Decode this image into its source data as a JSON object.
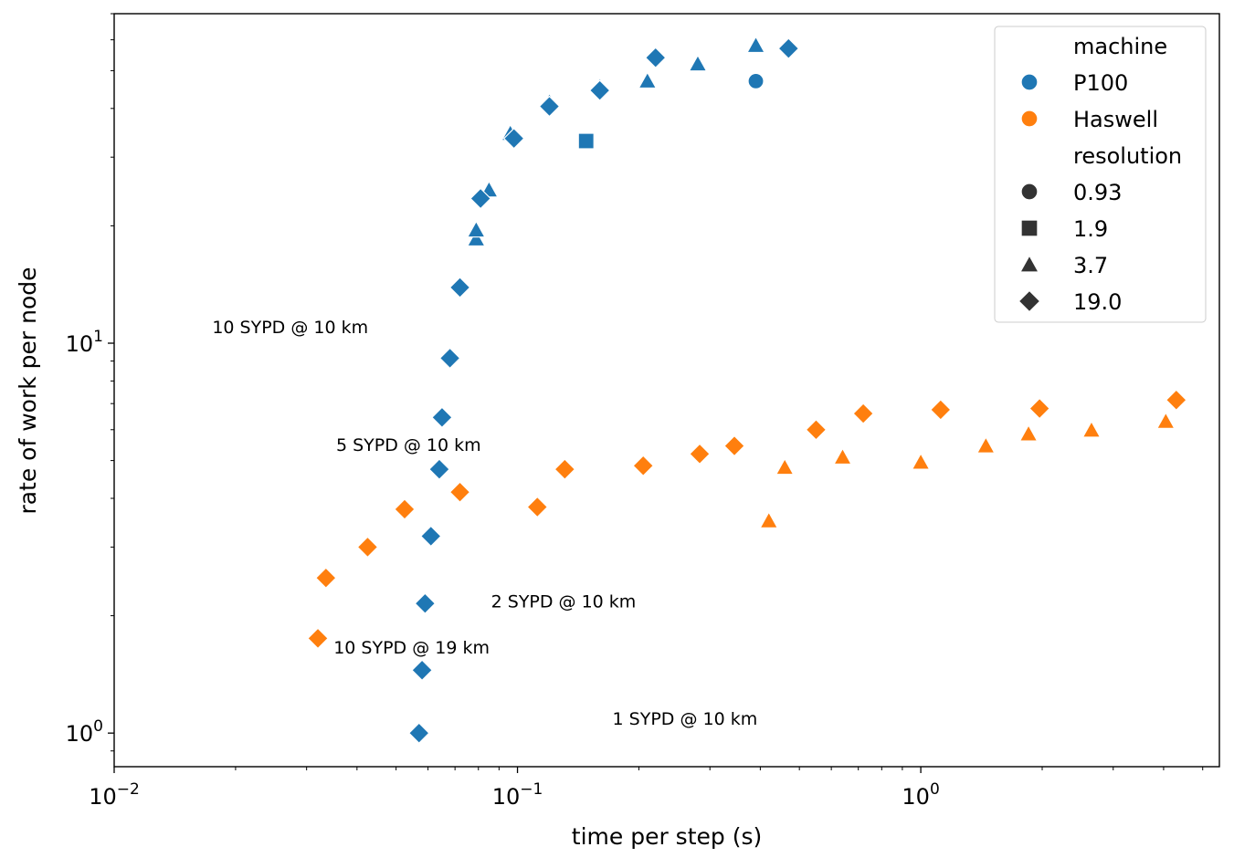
{
  "chart_data": {
    "type": "scatter",
    "title": "",
    "xlabel": "time per step (s)",
    "ylabel": "rate of work per node",
    "xscale": "log",
    "yscale": "log",
    "xlim": [
      0.01,
      5.5
    ],
    "ylim": [
      0.82,
      70
    ],
    "grid": false,
    "legend_position": "top-right",
    "x_major_ticks": [
      {
        "value": 0.01,
        "base": "10",
        "exp": "−2"
      },
      {
        "value": 0.1,
        "base": "10",
        "exp": "−1"
      },
      {
        "value": 1,
        "base": "10",
        "exp": "0"
      }
    ],
    "y_major_ticks": [
      {
        "value": 1,
        "base": "10",
        "exp": "0"
      },
      {
        "value": 10,
        "base": "10",
        "exp": "1"
      }
    ],
    "legend": {
      "hue_title": "machine",
      "hue_entries": [
        {
          "label": "P100",
          "color": "#1f77b4"
        },
        {
          "label": "Haswell",
          "color": "#ff7f0e"
        }
      ],
      "style_title": "resolution",
      "style_entries": [
        {
          "label": "0.93",
          "marker": "circle"
        },
        {
          "label": "1.9",
          "marker": "square"
        },
        {
          "label": "3.7",
          "marker": "triangle"
        },
        {
          "label": "19.0",
          "marker": "diamond"
        }
      ]
    },
    "annotations": [
      {
        "text": "10 SYPD @ 10 km",
        "x": 0.0175,
        "y": 10.6
      },
      {
        "text": "5 SYPD @ 10 km",
        "x": 0.0355,
        "y": 5.3
      },
      {
        "text": "2 SYPD @ 10 km",
        "x": 0.086,
        "y": 2.1
      },
      {
        "text": "10 SYPD @ 19 km",
        "x": 0.035,
        "y": 1.6
      },
      {
        "text": "1 SYPD @ 10 km",
        "x": 0.172,
        "y": 1.05
      }
    ],
    "series": [
      {
        "machine": "P100",
        "resolution": "0.93",
        "marker": "circle",
        "points": [
          [
            0.39,
            47
          ]
        ]
      },
      {
        "machine": "P100",
        "resolution": "1.9",
        "marker": "square",
        "points": [
          [
            0.148,
            33
          ]
        ]
      },
      {
        "machine": "P100",
        "resolution": "3.7",
        "marker": "triangle",
        "points": [
          [
            0.079,
            18.5
          ],
          [
            0.079,
            19.5
          ],
          [
            0.085,
            24.7
          ],
          [
            0.096,
            34.5
          ],
          [
            0.12,
            41.5
          ],
          [
            0.16,
            45.5
          ],
          [
            0.21,
            47
          ],
          [
            0.28,
            52
          ],
          [
            0.39,
            58
          ]
        ]
      },
      {
        "machine": "P100",
        "resolution": "19.0",
        "marker": "diamond",
        "points": [
          [
            0.057,
            1.0
          ],
          [
            0.058,
            1.45
          ],
          [
            0.059,
            2.15
          ],
          [
            0.061,
            3.2
          ],
          [
            0.064,
            4.75
          ],
          [
            0.065,
            6.45
          ],
          [
            0.068,
            9.15
          ],
          [
            0.072,
            13.9
          ],
          [
            0.081,
            23.5
          ],
          [
            0.098,
            33.5
          ],
          [
            0.12,
            40.5
          ],
          [
            0.16,
            44.5
          ],
          [
            0.22,
            54
          ],
          [
            0.47,
            57
          ]
        ]
      },
      {
        "machine": "Haswell",
        "resolution": "3.7",
        "marker": "triangle",
        "points": [
          [
            0.42,
            3.5
          ],
          [
            0.46,
            4.8
          ],
          [
            0.64,
            5.1
          ],
          [
            1.0,
            4.95
          ],
          [
            1.45,
            5.45
          ],
          [
            1.85,
            5.85
          ],
          [
            2.65,
            5.98
          ],
          [
            4.05,
            6.3
          ]
        ]
      },
      {
        "machine": "Haswell",
        "resolution": "19.0",
        "marker": "diamond",
        "points": [
          [
            0.032,
            1.75
          ],
          [
            0.0335,
            2.5
          ],
          [
            0.0425,
            3.0
          ],
          [
            0.0525,
            3.75
          ],
          [
            0.072,
            4.15
          ],
          [
            0.112,
            3.8
          ],
          [
            0.131,
            4.75
          ],
          [
            0.205,
            4.85
          ],
          [
            0.283,
            5.2
          ],
          [
            0.345,
            5.45
          ],
          [
            0.55,
            6.0
          ],
          [
            0.72,
            6.6
          ],
          [
            1.12,
            6.75
          ],
          [
            1.97,
            6.8
          ],
          [
            4.3,
            7.15
          ]
        ]
      }
    ]
  }
}
